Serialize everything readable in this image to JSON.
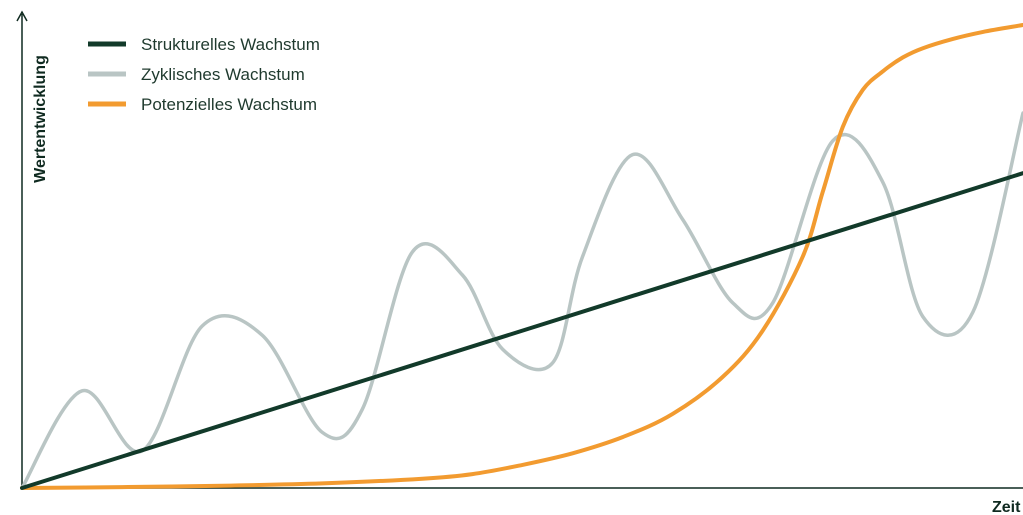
{
  "chart_data": {
    "type": "line",
    "title": "",
    "xlabel": "Zeit",
    "ylabel": "Wertentwicklung",
    "xlim": [
      0,
      100
    ],
    "ylim": [
      0,
      100
    ],
    "grid": false,
    "legend_position": "top-left",
    "series": [
      {
        "name": "Strukturelles Wachstum",
        "color": "#123a2a",
        "x": [
          0,
          100
        ],
        "y": [
          0,
          68
        ]
      },
      {
        "name": "Zyklisches Wachstum",
        "color": "#b9c5c4",
        "x": [
          0,
          6,
          12,
          18,
          24,
          30,
          34,
          39,
          44,
          48,
          53,
          56,
          61,
          66,
          71,
          75,
          81,
          86,
          90,
          95,
          100
        ],
        "y": [
          0,
          21,
          8,
          35,
          33,
          12,
          17,
          51,
          46,
          30,
          27,
          50,
          72,
          58,
          40,
          40,
          75,
          66,
          37,
          38,
          81
        ]
      },
      {
        "name": "Potenzielles Wachstum",
        "color": "#f29b30",
        "x": [
          0,
          10,
          20,
          30,
          40,
          45,
          50,
          55,
          60,
          65,
          70,
          74,
          78,
          80,
          82,
          84,
          86,
          88,
          90,
          93,
          96,
          100
        ],
        "y": [
          0,
          0.2,
          0.5,
          1,
          2,
          3,
          5,
          7.5,
          11,
          16,
          24,
          34,
          50,
          64,
          78,
          86,
          90,
          93,
          95,
          97,
          98.5,
          100
        ]
      }
    ]
  }
}
